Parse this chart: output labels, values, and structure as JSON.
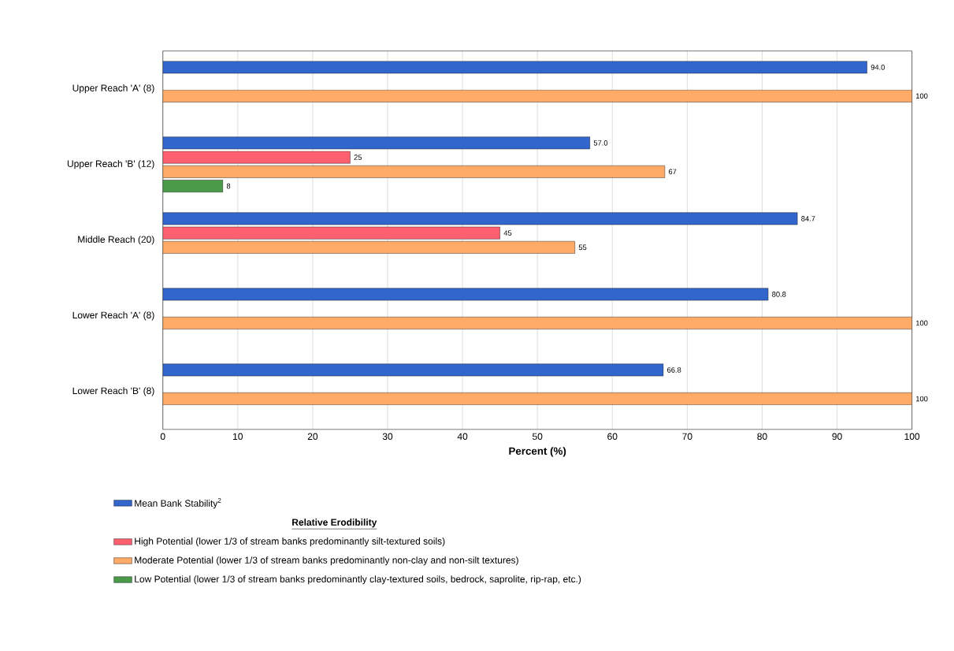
{
  "chart_data": {
    "type": "bar",
    "orientation": "horizontal",
    "xlabel": "Percent (%)",
    "legend_title": "Relative Erodibility",
    "categories": [
      "Upper Reach 'A' (8)",
      "Upper Reach 'B' (12)",
      "Middle Reach (20)",
      "Lower Reach 'A' (8)",
      "Lower Reach 'B' (8)"
    ],
    "series": [
      {
        "name": "Mean Bank Stability$^{2}$",
        "color": "#3366cc",
        "values": [
          94.0,
          57.0,
          84.7,
          80.8,
          66.8
        ],
        "value_labels": [
          "94.0",
          "57.0",
          "84.7",
          "80.8",
          "66.8"
        ]
      },
      {
        "name": "High Potential (lower 1/3 of stream banks predominantly silt-textured soils)",
        "color": "#ff6070",
        "values": [
          null,
          25,
          45,
          null,
          null
        ],
        "value_labels": [
          null,
          "25",
          "45",
          null,
          null
        ]
      },
      {
        "name": "Moderate Potential (lower 1/3 of stream banks predominantly non-clay and non-silt textures)",
        "color": "#ffaa66",
        "values": [
          100,
          67,
          55,
          100,
          100
        ],
        "value_labels": [
          "100",
          "67",
          "55",
          "100",
          "100"
        ]
      },
      {
        "name": "Low Potential (lower 1/3 of stream banks predominantly clay-textured soils, bedrock, saprolite, rip-rap, etc.)",
        "color": "#4a9a4a",
        "values": [
          null,
          8,
          null,
          null,
          null
        ],
        "value_labels": [
          null,
          "8",
          null,
          null,
          null
        ]
      }
    ],
    "xlim": [
      0,
      100
    ],
    "xticks": [
      0,
      10,
      20,
      30,
      40,
      50,
      60,
      70,
      80,
      90,
      100
    ],
    "grid": "x",
    "legend": "bottom"
  }
}
